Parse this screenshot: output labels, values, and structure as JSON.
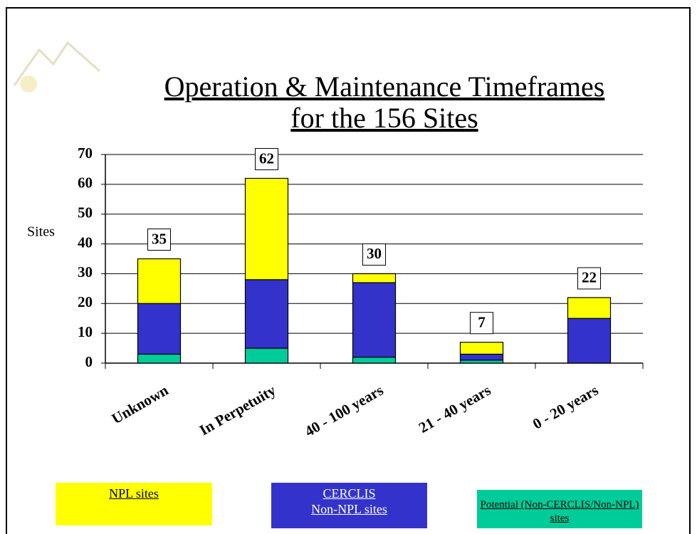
{
  "chart_data": {
    "type": "stacked_bar",
    "title": "Operation & Maintenance Timeframes for the 156 Sites",
    "y_label": "Sites",
    "categories": [
      "Unknown",
      "In Perpetuity",
      "40 - 100 years",
      "21 - 40 years",
      "0 - 20 years"
    ],
    "series": [
      {
        "name": "Potential (Non-CERCLIS/Non-NPL) sites",
        "color": "#00cc99",
        "values": [
          3,
          5,
          2,
          1,
          0
        ]
      },
      {
        "name": "CERCLIS Non-NPL sites",
        "color": "#3333cc",
        "values": [
          17,
          23,
          25,
          2,
          15
        ]
      },
      {
        "name": "NPL sites",
        "color": "#ffff00",
        "values": [
          15,
          34,
          3,
          4,
          7
        ]
      }
    ],
    "totals": [
      35,
      62,
      30,
      7,
      22
    ],
    "ylim": [
      0,
      70
    ],
    "yticks": [
      0,
      10,
      20,
      30,
      40,
      50,
      60,
      70
    ],
    "grid": true
  }
}
